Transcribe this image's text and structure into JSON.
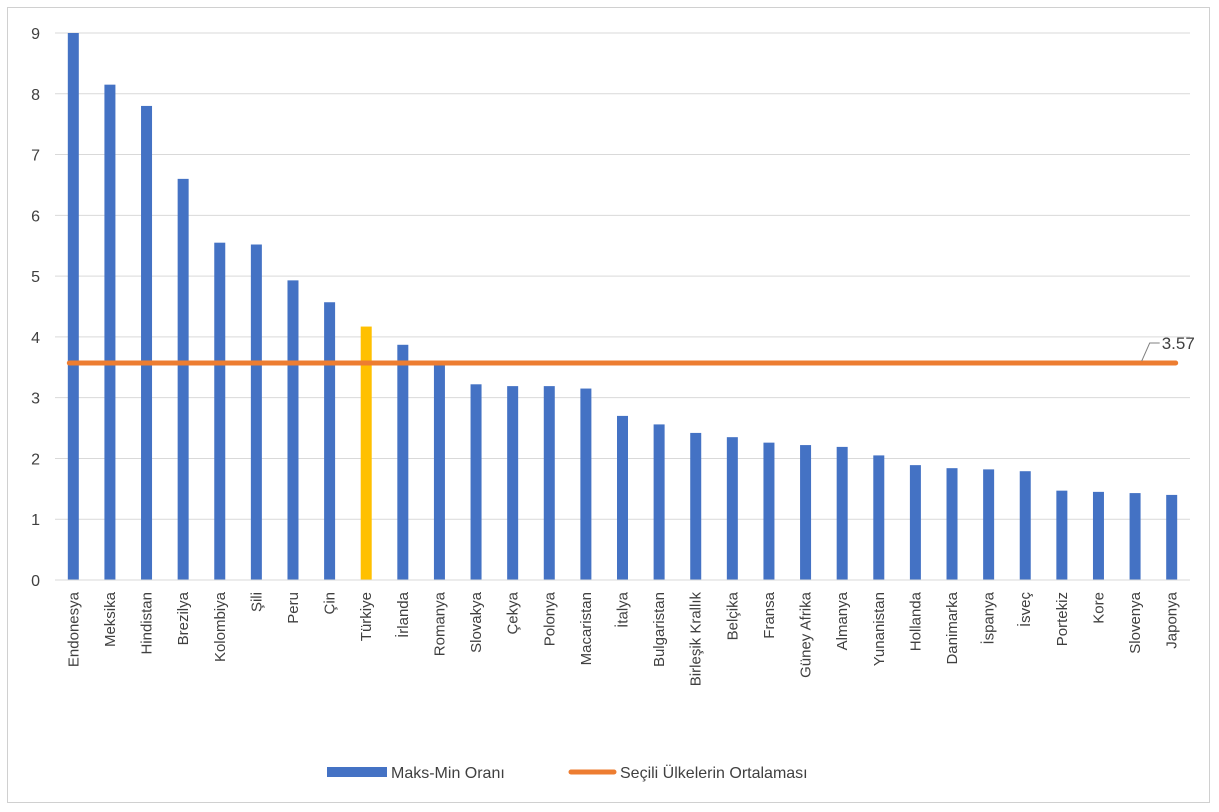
{
  "chart_data": {
    "type": "bar",
    "categories": [
      "Endonesya",
      "Meksika",
      "Hindistan",
      "Brezilya",
      "Kolombiya",
      "Şili",
      "Peru",
      "Çin",
      "Türkiye",
      "İrlanda",
      "Romanya",
      "Slovakya",
      "Çekya",
      "Polonya",
      "Macaristan",
      "İtalya",
      "Bulgaristan",
      "Birleşik Krallık",
      "Belçika",
      "Fransa",
      "Güney Afrika",
      "Almanya",
      "Yunanistan",
      "Hollanda",
      "Danimarka",
      "İspanya",
      "İsveç",
      "Portekiz",
      "Kore",
      "Slovenya",
      "Japonya"
    ],
    "series": [
      {
        "name": "Maks-Min Oranı",
        "type": "bar",
        "color": "#4472C4",
        "values": [
          9.0,
          8.15,
          7.8,
          6.6,
          5.55,
          5.52,
          4.93,
          4.57,
          4.17,
          3.87,
          3.57,
          3.22,
          3.19,
          3.19,
          3.15,
          2.7,
          2.56,
          2.42,
          2.35,
          2.26,
          2.22,
          2.19,
          2.05,
          1.89,
          1.84,
          1.82,
          1.79,
          1.47,
          1.45,
          1.43,
          1.4
        ]
      },
      {
        "name": "Seçili Ülkelerin Ortalaması",
        "type": "line",
        "color": "#ED7D31",
        "value": 3.57
      }
    ],
    "highlight": {
      "category": "Türkiye",
      "color": "#FFC000"
    },
    "annotation": "3.57",
    "ylim": [
      0,
      9
    ],
    "yticks": [
      "0",
      "1",
      "2",
      "3",
      "4",
      "5",
      "6",
      "7",
      "8",
      "9"
    ],
    "grid": true,
    "legend_position": "bottom"
  }
}
